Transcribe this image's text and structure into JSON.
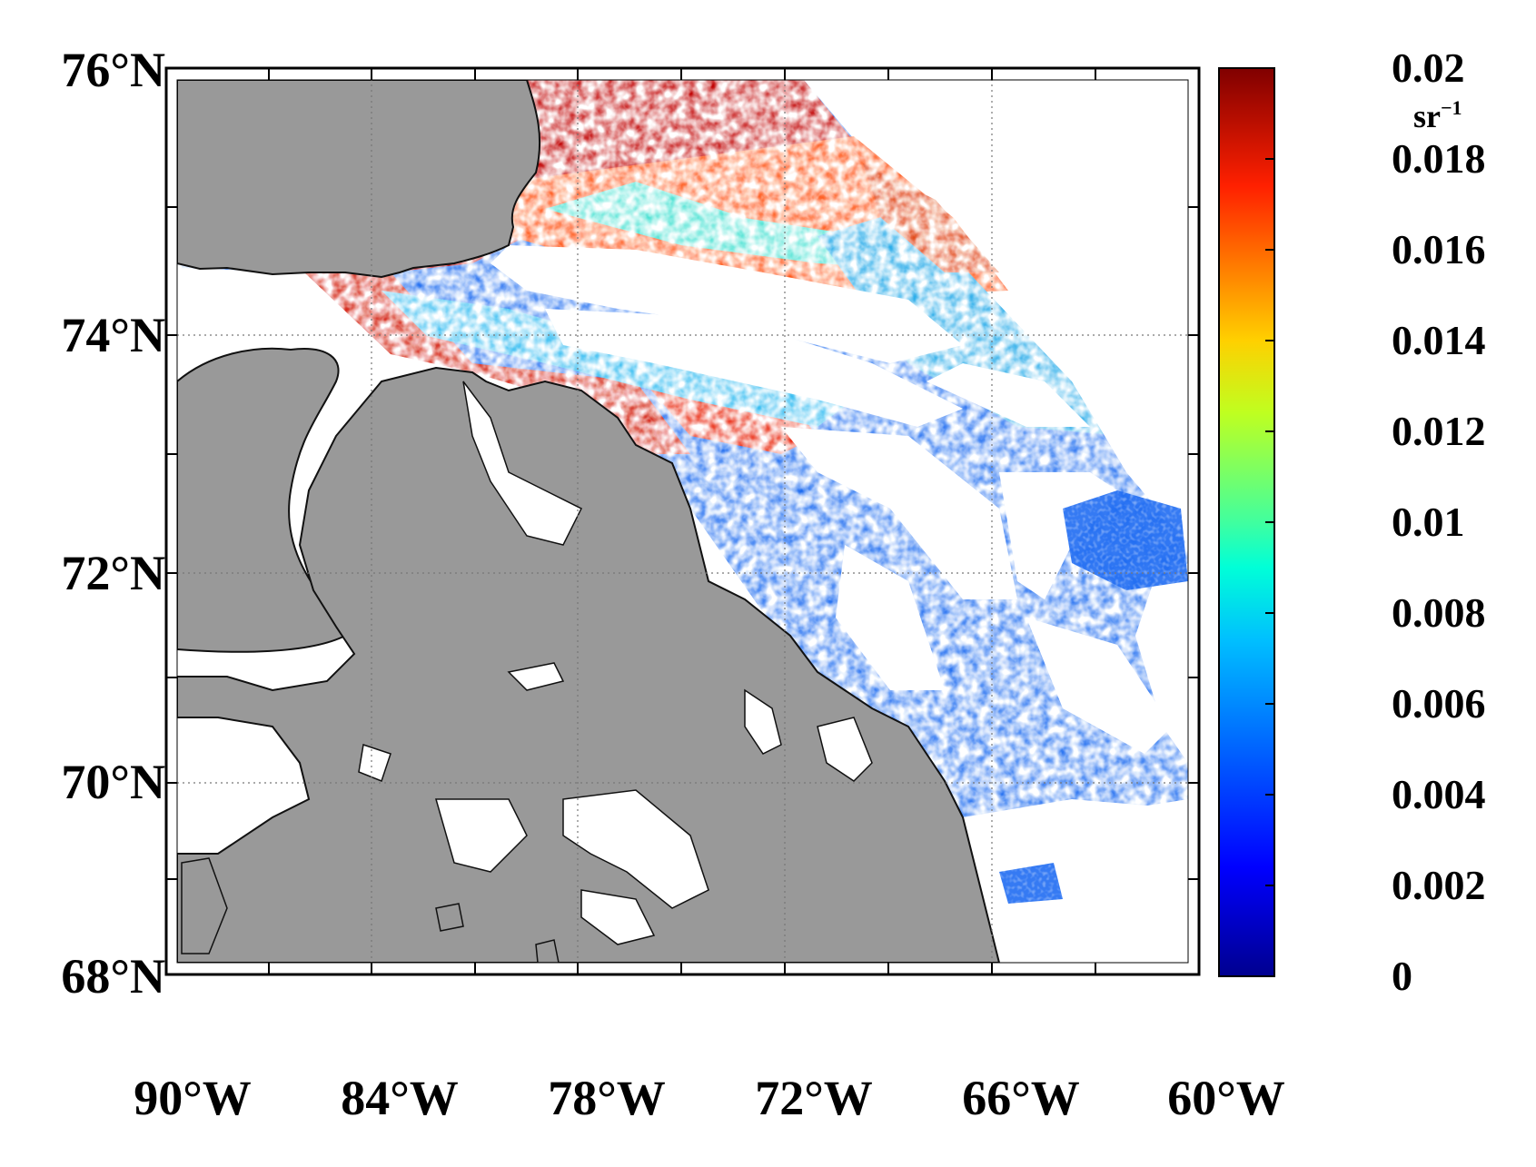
{
  "map": {
    "lat_ticks": [
      "76°N",
      "74°N",
      "72°N",
      "70°N",
      "68°N"
    ],
    "lon_ticks": [
      "90°W",
      "84°W",
      "78°W",
      "72°W",
      "66°W",
      "60°W"
    ],
    "extent": {
      "lon_min": -90,
      "lon_max": -60,
      "lat_min": 68,
      "lat_max": 76
    },
    "grid_lines": "dotted",
    "land_color": "#999999"
  },
  "colorbar": {
    "ticks": [
      "0.02",
      "0.018",
      "0.016",
      "0.014",
      "0.012",
      "0.01",
      "0.008",
      "0.006",
      "0.004",
      "0.002",
      "0"
    ],
    "unit": "sr",
    "unit_exp": "−1",
    "range": [
      0,
      0.02
    ],
    "colormap": "jet"
  }
}
